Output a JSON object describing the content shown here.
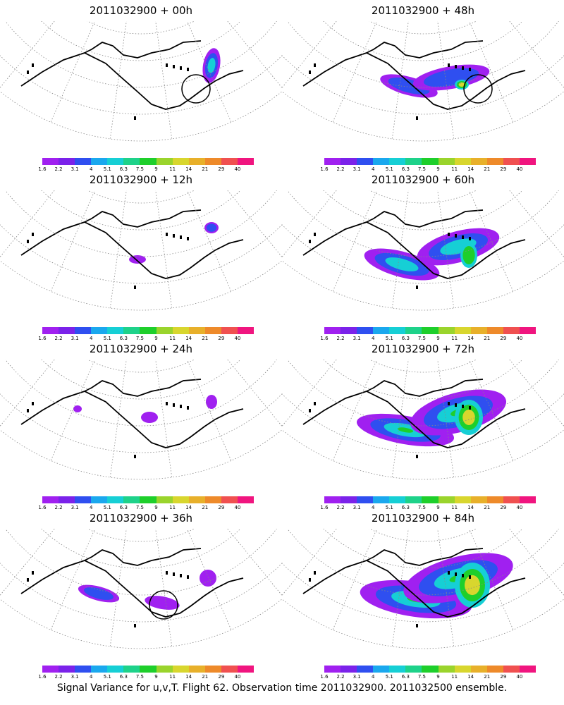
{
  "figure": {
    "caption": "Signal Variance for u,v,T. Flight 62. Observation time 2011032900. 2011032500 ensemble."
  },
  "colorbar": {
    "colors": [
      "#a020f0",
      "#7b22ea",
      "#2f4ff0",
      "#1aa8ee",
      "#16cfd5",
      "#1ed28a",
      "#1ecf2b",
      "#9ad42c",
      "#d8d62e",
      "#e8b02a",
      "#ee8a2a",
      "#f05050",
      "#f0157f"
    ],
    "tick_labels": [
      "1.6",
      "2.2",
      "3.1",
      "4",
      "5.1",
      "6.3",
      "7.5",
      "9",
      "11",
      "14",
      "21",
      "29",
      "40"
    ]
  },
  "panels": [
    {
      "title": "2011032900 + 00h",
      "intensity": 0,
      "circle": true
    },
    {
      "title": "2011032900 + 48h",
      "intensity": 4,
      "circle": true
    },
    {
      "title": "2011032900 + 12h",
      "intensity": 1,
      "circle": false
    },
    {
      "title": "2011032900 + 60h",
      "intensity": 5,
      "circle": false
    },
    {
      "title": "2011032900 + 24h",
      "intensity": 2,
      "circle": false
    },
    {
      "title": "2011032900 + 72h",
      "intensity": 6,
      "circle": false
    },
    {
      "title": "2011032900 + 36h",
      "intensity": 3,
      "circle": true
    },
    {
      "title": "2011032900 + 84h",
      "intensity": 7,
      "circle": false
    }
  ]
}
